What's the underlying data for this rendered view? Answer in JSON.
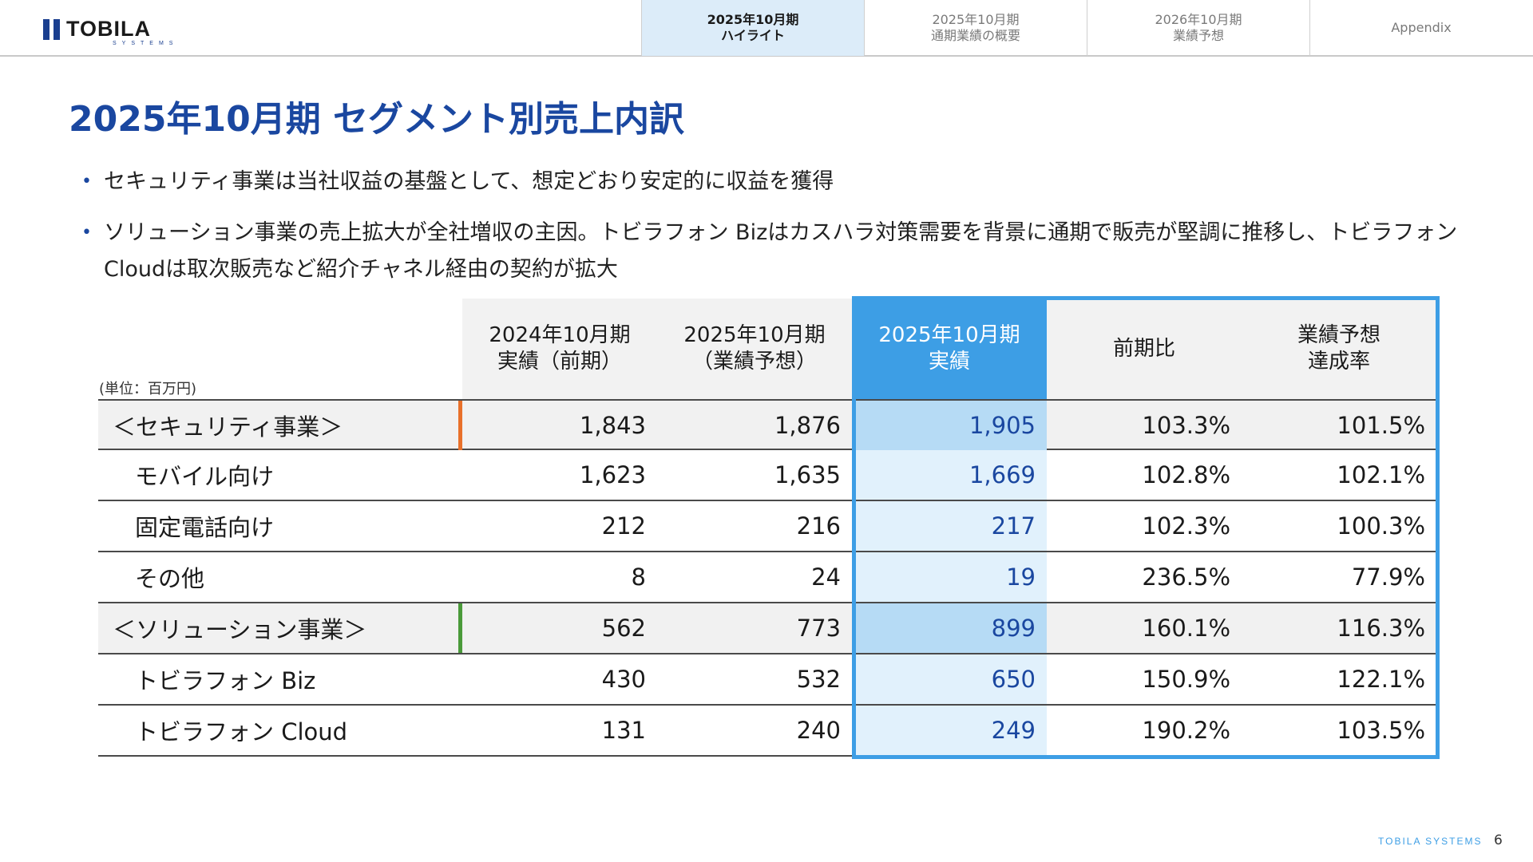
{
  "header": {
    "logo_text": "TOBILA",
    "logo_sub": "SYSTEMS",
    "tabs": [
      {
        "label": "2025年10月期\nハイライト",
        "active": true
      },
      {
        "label": "2025年10月期\n通期業績の概要",
        "active": false
      },
      {
        "label": "2026年10月期\n業績予想",
        "active": false
      },
      {
        "label": "Appendix",
        "active": false
      }
    ]
  },
  "title": "2025年10月期 セグメント別売上内訳",
  "bullets": [
    "セキュリティ事業は当社収益の基盤として、想定どおり安定的に収益を獲得",
    "ソリューション事業の売上拡大が全社増収の主因。トビラフォン Bizはカスハラ対策需要を背景に通期で販売が堅調に推移し、トビラフォン Cloudは取次販売など紹介チャネル経由の契約が拡大"
  ],
  "table": {
    "unit": "(単位：百万円)",
    "headers": [
      "2024年10月期\n実績（前期）",
      "2025年10月期\n（業績予想）",
      "2025年10月期\n実績",
      "前期比",
      "業績予想\n達成率"
    ],
    "rows": [
      {
        "label": "＜セキュリティ事業＞",
        "type": "segment",
        "marker_color": "#e8702a",
        "values": [
          "1,843",
          "1,876",
          "1,905",
          "103.3%",
          "101.5%"
        ]
      },
      {
        "label": "モバイル向け",
        "type": "sub",
        "values": [
          "1,623",
          "1,635",
          "1,669",
          "102.8%",
          "102.1%"
        ]
      },
      {
        "label": "固定電話向け",
        "type": "sub",
        "values": [
          "212",
          "216",
          "217",
          "102.3%",
          "100.3%"
        ]
      },
      {
        "label": "その他",
        "type": "sub",
        "values": [
          "8",
          "24",
          "19",
          "236.5%",
          "77.9%"
        ]
      },
      {
        "label": "＜ソリューション事業＞",
        "type": "segment",
        "marker_color": "#4a9a3a",
        "values": [
          "562",
          "773",
          "899",
          "160.1%",
          "116.3%"
        ]
      },
      {
        "label": "トビラフォン Biz",
        "type": "sub",
        "values": [
          "430",
          "532",
          "650",
          "150.9%",
          "122.1%"
        ]
      },
      {
        "label": "トビラフォン Cloud",
        "type": "sub",
        "values": [
          "131",
          "240",
          "249",
          "190.2%",
          "103.5%"
        ]
      }
    ]
  },
  "footer": {
    "brand": "TOBILA SYSTEMS",
    "page": "6"
  },
  "colors": {
    "accent": "#1a47a0",
    "highlight": "#3d9ee5"
  }
}
